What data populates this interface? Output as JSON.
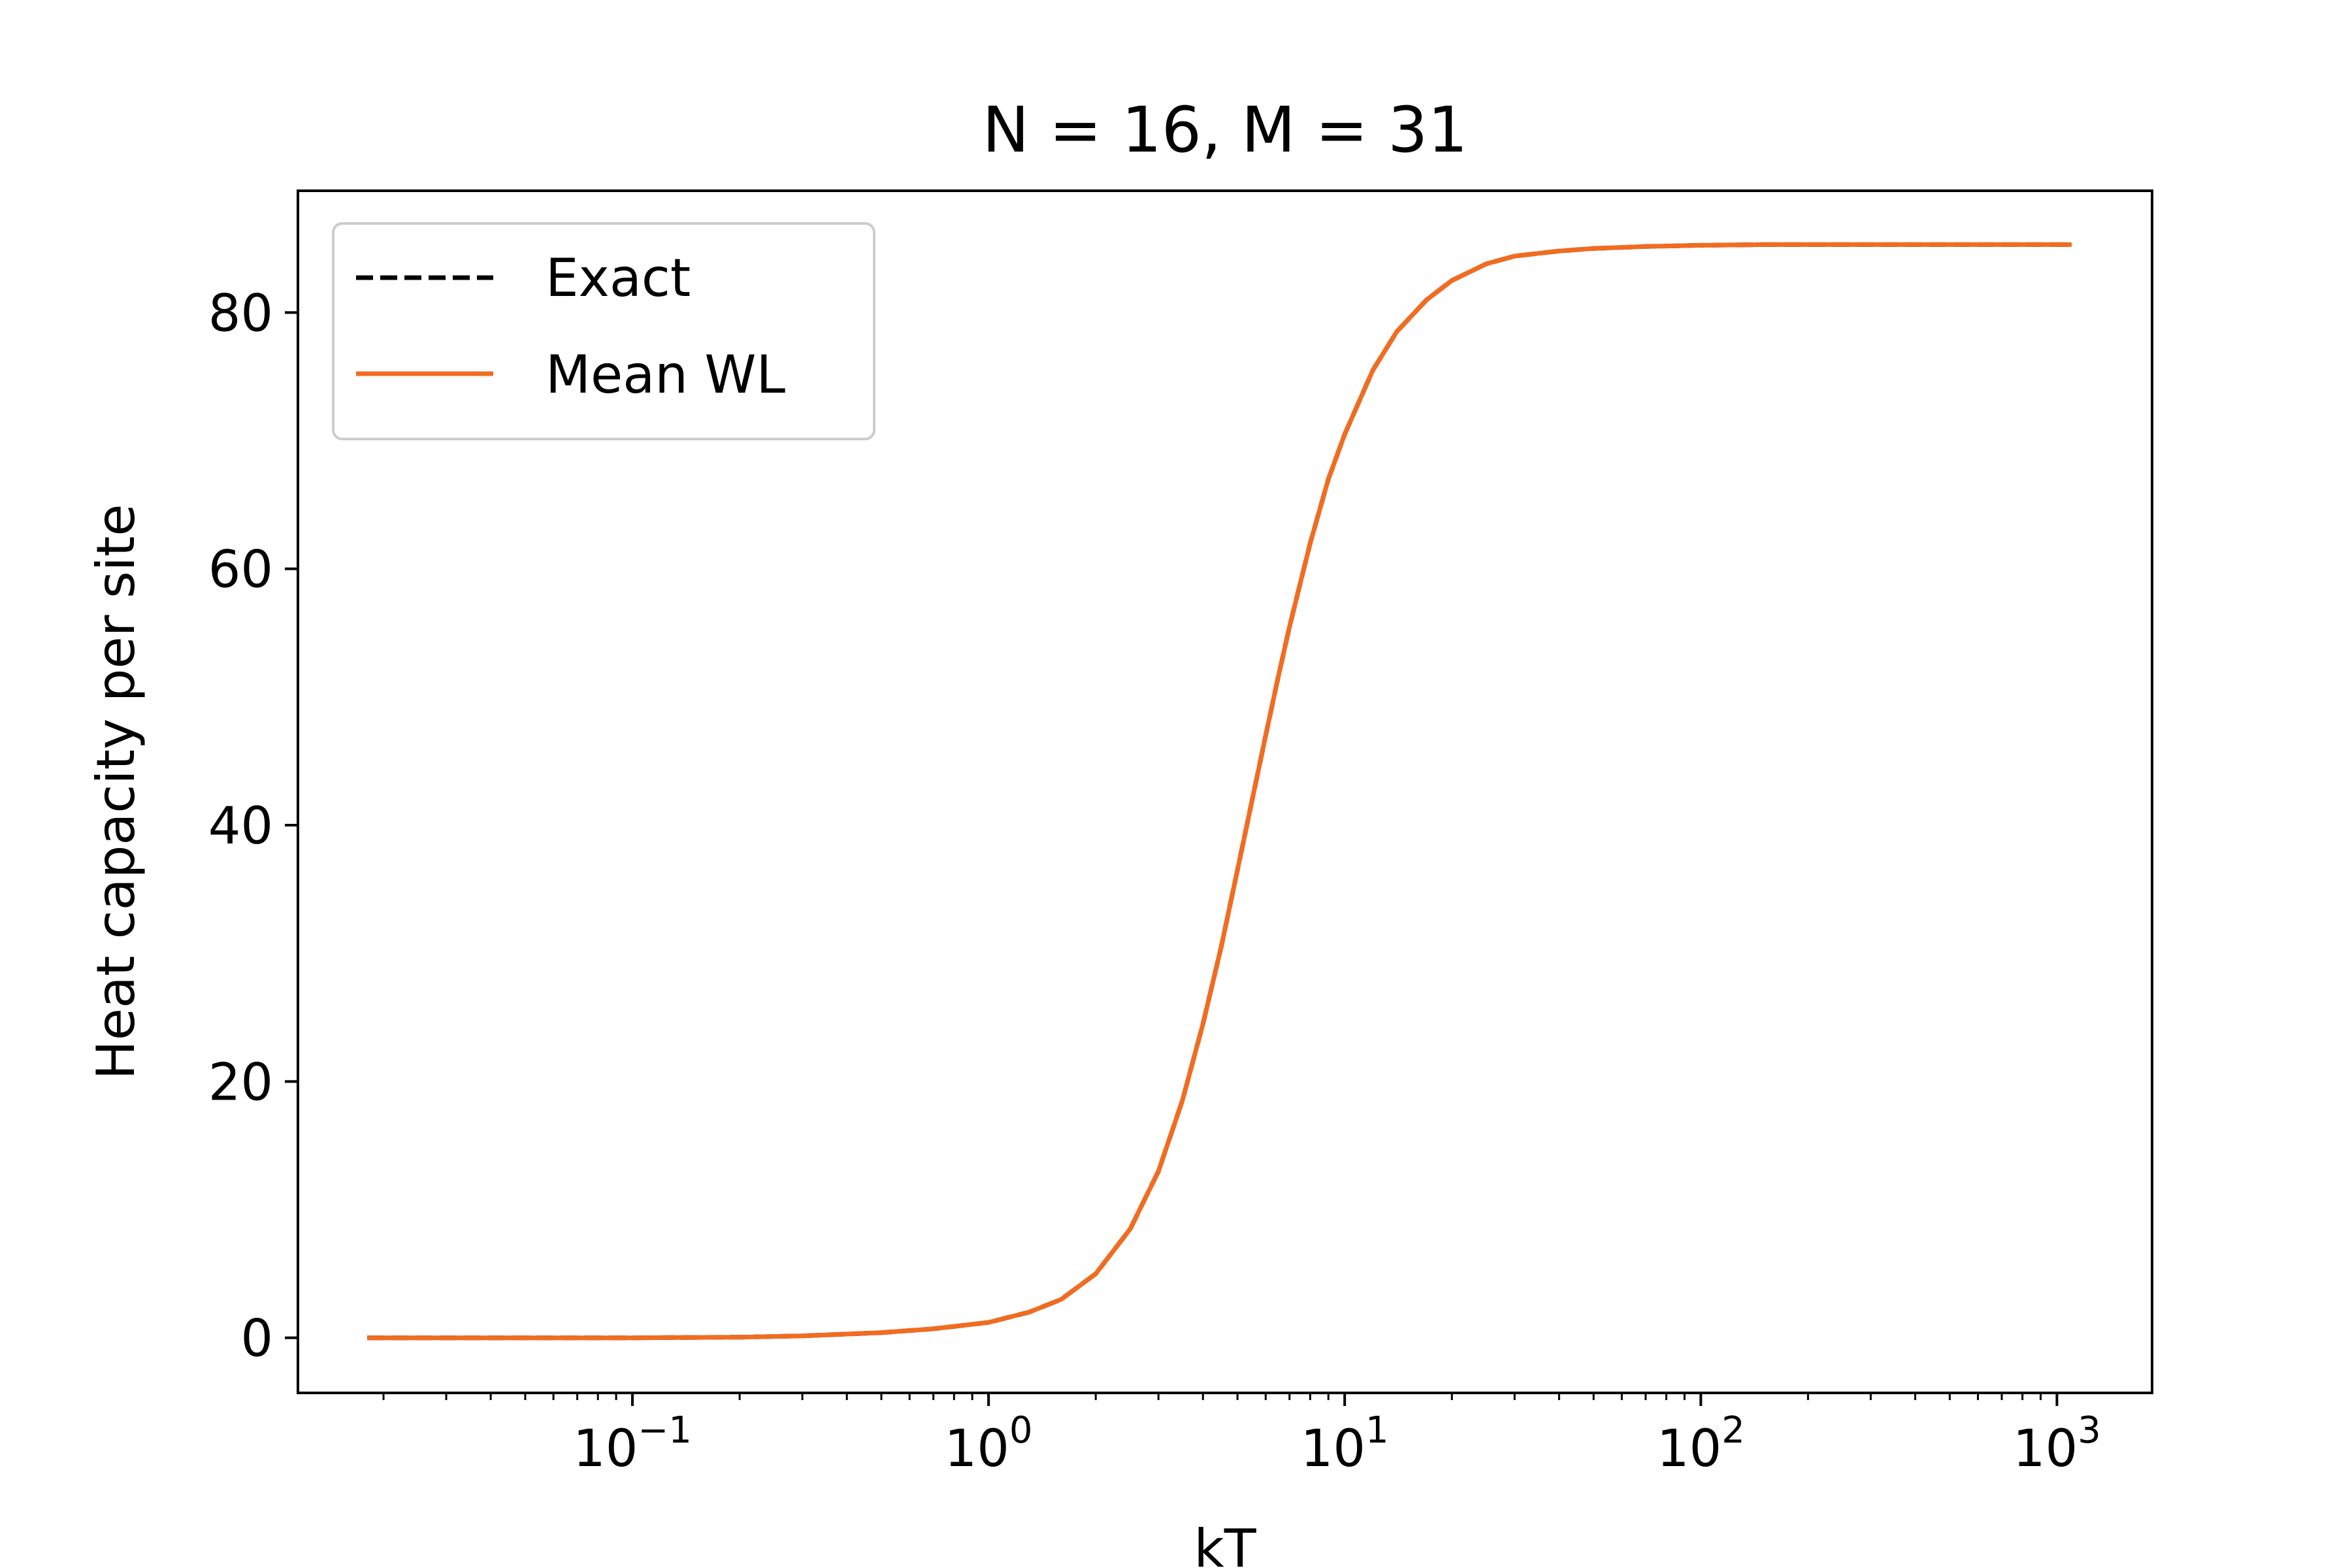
{
  "chart_data": {
    "type": "line",
    "title": "N = 16, M = 31",
    "xlabel": "kT",
    "ylabel": "Heat capacity per site",
    "xscale": "log",
    "xlim": [
      0.0115,
      1850
    ],
    "ylim": [
      -4.3,
      89.5
    ],
    "xticks": [
      {
        "value": 0.1,
        "base": "10",
        "exp": "−1"
      },
      {
        "value": 1,
        "base": "10",
        "exp": "0"
      },
      {
        "value": 10,
        "base": "10",
        "exp": "1"
      },
      {
        "value": 100,
        "base": "10",
        "exp": "2"
      },
      {
        "value": 1000,
        "base": "10",
        "exp": "3"
      }
    ],
    "yticks": [
      {
        "value": 0,
        "label": "0"
      },
      {
        "value": 20,
        "label": "20"
      },
      {
        "value": 40,
        "label": "40"
      },
      {
        "value": 60,
        "label": "60"
      },
      {
        "value": 80,
        "label": "80"
      }
    ],
    "grid": false,
    "legend_position": "top-left",
    "series": [
      {
        "name": "Exact",
        "color": "#000000",
        "style": "dashed",
        "x": [
          0.018,
          0.03,
          0.05,
          0.1,
          0.2,
          0.3,
          0.5,
          0.7,
          1.0,
          1.3,
          1.6,
          2.0,
          2.5,
          3.0,
          3.5,
          4.0,
          4.5,
          5.0,
          5.5,
          6.0,
          6.5,
          7.0,
          8.0,
          9.0,
          10.0,
          12.0,
          14.0,
          17.0,
          20.0,
          25.0,
          30.0,
          40.0,
          50.0,
          70.0,
          100.0,
          150.0,
          200.0,
          300.0,
          500.0,
          700.0,
          1100.0
        ],
        "y": [
          0.0,
          0.0,
          0.0,
          0.0,
          0.05,
          0.15,
          0.4,
          0.7,
          1.2,
          2.0,
          3.0,
          5.0,
          8.5,
          13.0,
          18.5,
          24.5,
          30.5,
          36.5,
          42.0,
          47.0,
          51.5,
          55.5,
          62.0,
          67.0,
          70.5,
          75.5,
          78.5,
          81.0,
          82.5,
          83.8,
          84.4,
          84.8,
          85.0,
          85.15,
          85.25,
          85.3,
          85.3,
          85.3,
          85.3,
          85.3,
          85.3
        ]
      },
      {
        "name": "Mean WL",
        "color": "#f26c20",
        "style": "solid",
        "x": [
          0.018,
          0.03,
          0.05,
          0.1,
          0.2,
          0.3,
          0.5,
          0.7,
          1.0,
          1.3,
          1.6,
          2.0,
          2.5,
          3.0,
          3.5,
          4.0,
          4.5,
          5.0,
          5.5,
          6.0,
          6.5,
          7.0,
          8.0,
          9.0,
          10.0,
          12.0,
          14.0,
          17.0,
          20.0,
          25.0,
          30.0,
          40.0,
          50.0,
          70.0,
          100.0,
          150.0,
          200.0,
          300.0,
          500.0,
          700.0,
          1100.0
        ],
        "y": [
          0.0,
          0.0,
          0.0,
          0.0,
          0.05,
          0.15,
          0.4,
          0.7,
          1.2,
          2.0,
          3.0,
          5.0,
          8.5,
          13.0,
          18.5,
          24.5,
          30.5,
          36.5,
          42.0,
          47.0,
          51.5,
          55.5,
          62.0,
          67.0,
          70.5,
          75.5,
          78.5,
          81.0,
          82.5,
          83.8,
          84.4,
          84.8,
          85.0,
          85.15,
          85.25,
          85.3,
          85.3,
          85.3,
          85.3,
          85.3,
          85.3
        ]
      }
    ]
  }
}
